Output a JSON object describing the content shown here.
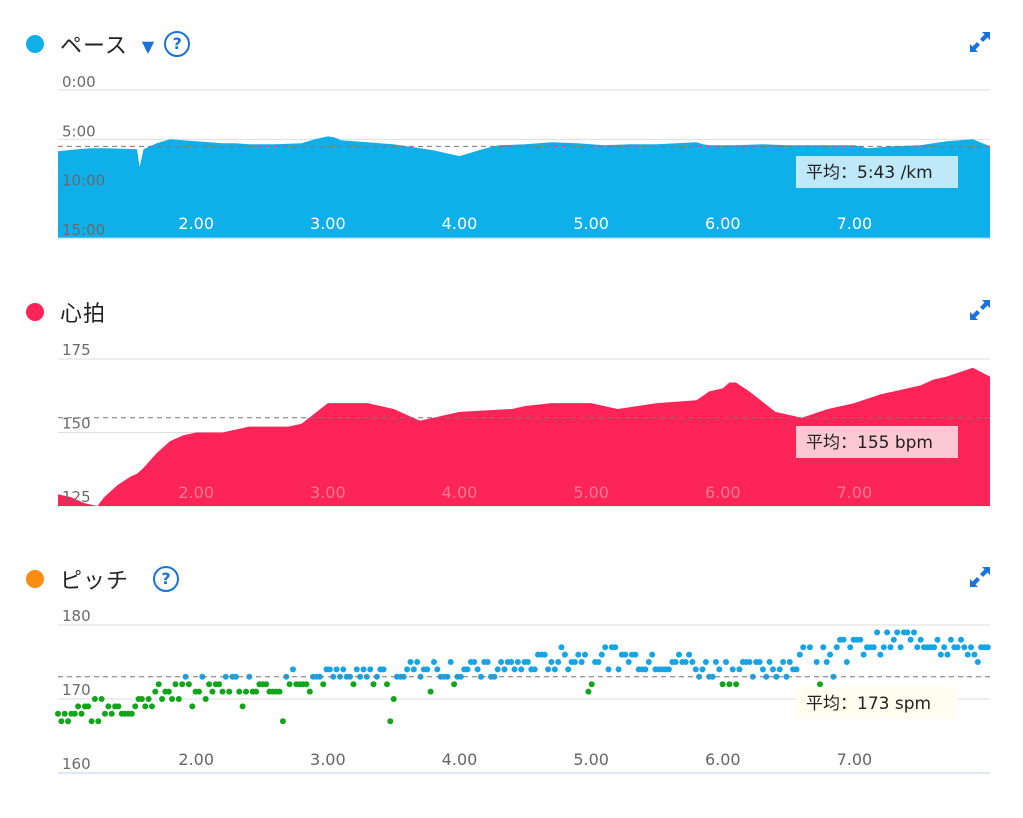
{
  "colors": {
    "pace": "#0fb0ea",
    "heart": "#fd2458",
    "cadence_dot": "#fd8c11",
    "cadence_high": "#16a4e6",
    "cadence_low": "#11a51a",
    "accent": "#1a73d9",
    "grid": "#dedede",
    "avgline": "#777777"
  },
  "panels": {
    "pace": {
      "title": "ペース",
      "dropdown_icon": "caret-down",
      "help_icon": "?",
      "expand_icon": "expand-arrows"
    },
    "heart": {
      "title": "心拍",
      "expand_icon": "expand-arrows"
    },
    "cadence": {
      "title": "ピッチ",
      "help_icon": "?",
      "expand_icon": "expand-arrows"
    }
  },
  "chart_data": [
    {
      "type": "area",
      "name": "pace",
      "yticks": [
        "0:00",
        "5:00",
        "10:00",
        "15:00"
      ],
      "ylim_minutes": [
        0,
        15
      ],
      "y_inverted": true,
      "xticks": [
        "2.00",
        "3.00",
        "4.00",
        "5.00",
        "6.00",
        "7.00"
      ],
      "xlim_km": [
        0.95,
        8.03
      ],
      "avg_label": "平均：5:43 /km",
      "avg_value_minutes": 5.72,
      "x": [
        0.95,
        1.1,
        1.2,
        1.3,
        1.55,
        1.57,
        1.6,
        1.7,
        1.8,
        2.0,
        2.1,
        2.2,
        2.3,
        2.4,
        2.6,
        2.8,
        2.9,
        3.0,
        3.05,
        3.1,
        3.3,
        3.5,
        3.8,
        4.0,
        4.2,
        4.3,
        4.5,
        4.7,
        4.9,
        5.1,
        5.3,
        5.5,
        5.8,
        5.85,
        5.9,
        6.1,
        6.3,
        6.5,
        6.7,
        6.9,
        7.0,
        7.1,
        7.3,
        7.5,
        7.7,
        7.9,
        8.03
      ],
      "values": [
        6.2,
        6.0,
        5.9,
        5.9,
        6.0,
        7.8,
        6.0,
        5.4,
        5.0,
        5.2,
        5.3,
        5.4,
        5.4,
        5.5,
        5.5,
        5.4,
        5.0,
        4.7,
        4.8,
        5.1,
        5.3,
        5.5,
        6.1,
        6.7,
        5.9,
        5.6,
        5.5,
        5.3,
        5.4,
        5.6,
        5.5,
        5.5,
        5.3,
        5.5,
        5.6,
        5.6,
        5.5,
        5.6,
        5.6,
        5.6,
        5.6,
        5.9,
        5.7,
        5.6,
        5.2,
        5.0,
        5.7
      ]
    },
    {
      "type": "area",
      "name": "heart_rate",
      "yticks": [
        "175",
        "150",
        "125"
      ],
      "ylim_bpm": [
        125,
        175
      ],
      "xticks": [
        "2.00",
        "3.00",
        "4.00",
        "5.00",
        "6.00",
        "7.00"
      ],
      "xlim_km": [
        0.95,
        8.03
      ],
      "avg_label": "平均：155 bpm",
      "avg_value": 155,
      "x": [
        0.95,
        1.05,
        1.15,
        1.25,
        1.3,
        1.4,
        1.5,
        1.55,
        1.6,
        1.7,
        1.8,
        1.9,
        2.0,
        2.1,
        2.2,
        2.4,
        2.5,
        2.6,
        2.7,
        2.8,
        3.0,
        3.3,
        3.5,
        3.7,
        4.0,
        4.4,
        4.5,
        4.7,
        4.9,
        5.0,
        5.2,
        5.5,
        5.8,
        5.9,
        6.0,
        6.05,
        6.1,
        6.2,
        6.4,
        6.6,
        6.8,
        7.0,
        7.2,
        7.5,
        7.6,
        7.7,
        7.9,
        8.03
      ],
      "values": [
        129,
        128,
        126,
        125,
        128,
        132,
        135,
        136,
        138,
        143,
        147,
        149,
        150,
        150,
        150,
        152,
        152,
        152,
        152,
        153,
        160,
        160,
        158,
        154,
        157,
        158,
        159,
        160,
        160,
        160,
        158,
        160,
        161,
        164,
        165,
        167,
        167,
        164,
        157,
        155,
        158,
        160,
        163,
        166,
        168,
        169,
        172,
        169
      ]
    },
    {
      "type": "scatter",
      "name": "cadence",
      "yticks": [
        "180",
        "170",
        "160"
      ],
      "ylim_spm": [
        160,
        180
      ],
      "xticks": [
        "2.00",
        "3.00",
        "4.00",
        "5.00",
        "6.00",
        "7.00"
      ],
      "xlim_km": [
        0.95,
        8.03
      ],
      "avg_label": "平均：173 spm",
      "avg_value": 173,
      "threshold_spm": 173,
      "trend_x": [
        0.95,
        1.2,
        1.5,
        1.8,
        2.1,
        2.5,
        2.8,
        3.0,
        3.2,
        3.6,
        4.0,
        4.3,
        4.6,
        5.0,
        5.4,
        5.6,
        5.8,
        6.0,
        6.2,
        6.5,
        6.9,
        7.2,
        7.6,
        8.03
      ],
      "trend_values": [
        168,
        168.5,
        169,
        171,
        172,
        172.5,
        173,
        173,
        172.5,
        174,
        174,
        173.8,
        175,
        176,
        175.5,
        175.5,
        174.5,
        174,
        174,
        175,
        177,
        177.5,
        178,
        176
      ]
    }
  ]
}
